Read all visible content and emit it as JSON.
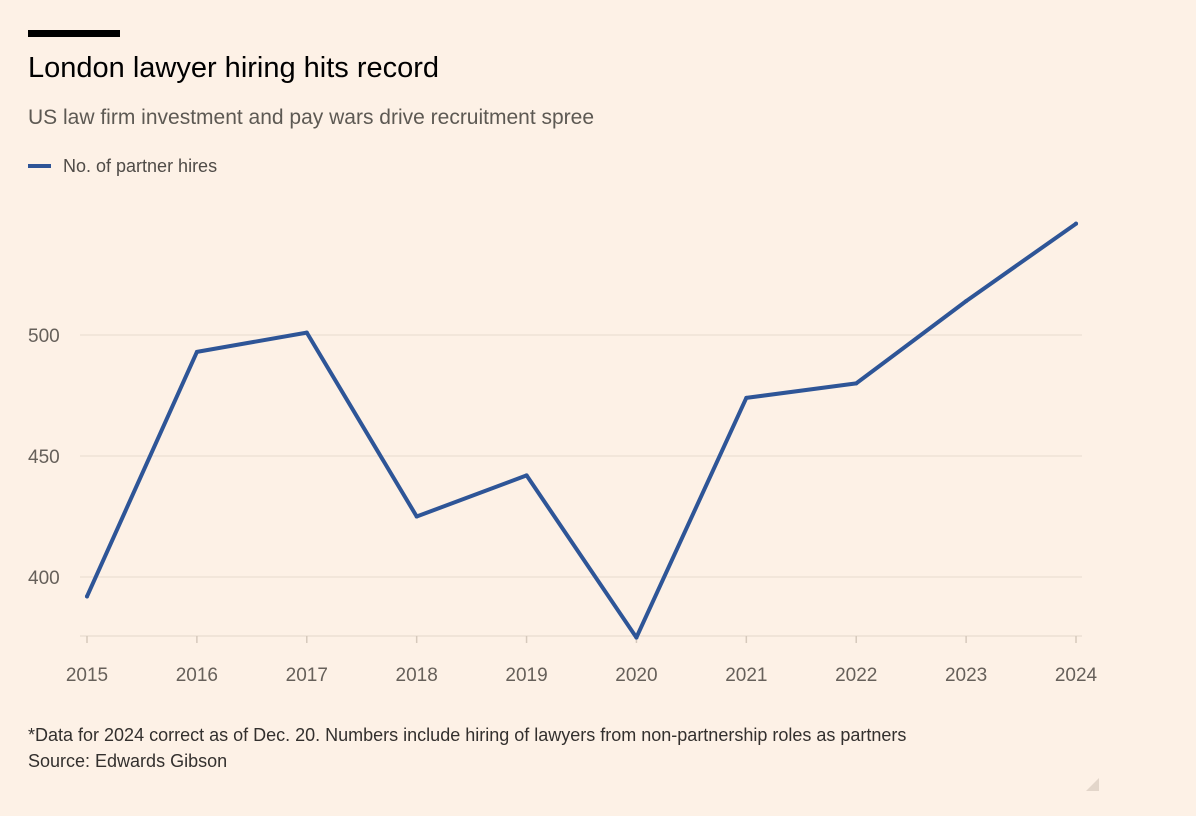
{
  "title": "London lawyer hiring hits record",
  "subtitle": "US law firm investment and pay wars drive recruitment spree",
  "legend": {
    "label": "No. of partner hires"
  },
  "footnote": "*Data for 2024 correct as of Dec. 20. Numbers include hiring of lawyers from non-partnership roles as partners",
  "source": "Source: Edwards Gibson",
  "colors": {
    "background": "#fdf1e6",
    "line": "#2e5597",
    "grid": "#ebdfd3"
  },
  "chart_data": {
    "type": "line",
    "categories": [
      "2015",
      "2016",
      "2017",
      "2018",
      "2019",
      "2020",
      "2021",
      "2022",
      "2023",
      "2024"
    ],
    "series": [
      {
        "name": "No. of partner hires",
        "values": [
          392,
          493,
          501,
          425,
          442,
          375,
          474,
          480,
          514,
          546
        ]
      }
    ],
    "y_ticks": [
      400,
      450,
      500
    ],
    "ylim": [
      375,
      550
    ],
    "grid": true,
    "legend_position": "top-left"
  }
}
